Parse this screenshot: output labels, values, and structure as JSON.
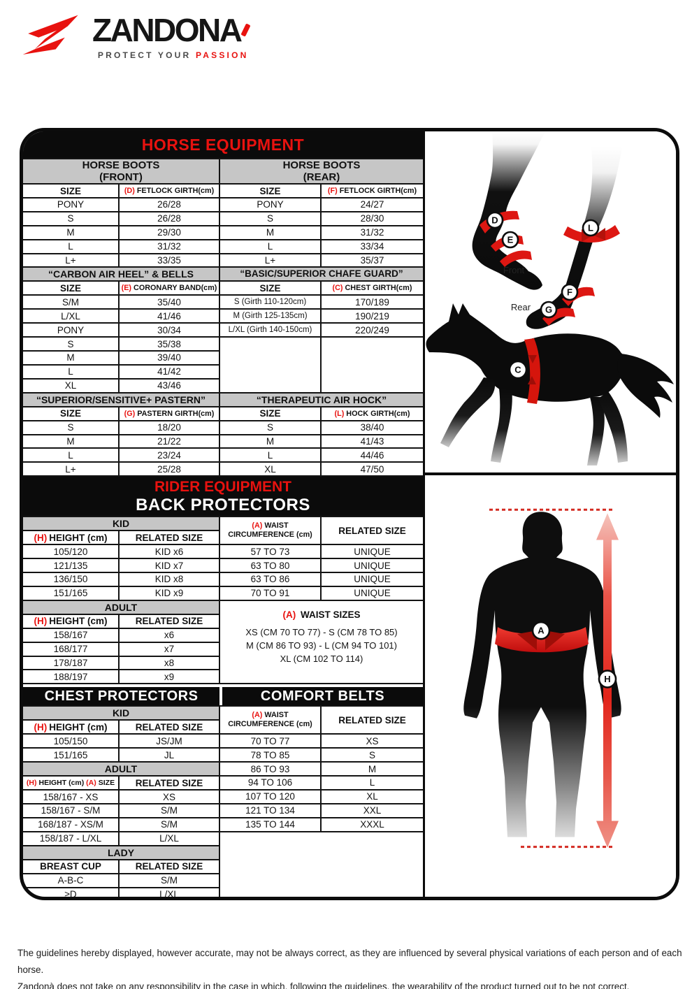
{
  "logo": {
    "brand": "ZANDONA",
    "tagline_dark": "PROTECT  YOUR",
    "tagline_red": "PASSION"
  },
  "horse": {
    "title": "HORSE EQUIPMENT",
    "front_boots": {
      "line1": "HORSE BOOTS",
      "line2": "(FRONT)",
      "size": "SIZE",
      "girth_prefix": "(D)",
      "girth": "FETLOCK GIRTH(cm)",
      "rows": [
        [
          "PONY",
          "26/28"
        ],
        [
          "S",
          "26/28"
        ],
        [
          "M",
          "29/30"
        ],
        [
          "L",
          "31/32"
        ],
        [
          "L+",
          "33/35"
        ]
      ]
    },
    "rear_boots": {
      "line1": "HORSE BOOTS",
      "line2": "(REAR)",
      "size": "SIZE",
      "girth_prefix": "(F)",
      "girth": "FETLOCK GIRTH(cm)",
      "rows": [
        [
          "PONY",
          "24/27"
        ],
        [
          "S",
          "28/30"
        ],
        [
          "M",
          "31/32"
        ],
        [
          "L",
          "33/34"
        ],
        [
          "L+",
          "35/37"
        ]
      ]
    },
    "carbon": {
      "title": "“CARBON AIR HEEL” & BELLS",
      "size": "SIZE",
      "girth_prefix": "(E)",
      "girth": "CORONARY BAND(cm)",
      "rows": [
        [
          "S/M",
          "35/40"
        ],
        [
          "L/XL",
          "41/46"
        ],
        [
          "PONY",
          "30/34"
        ],
        [
          "S",
          "35/38"
        ],
        [
          "M",
          "39/40"
        ],
        [
          "L",
          "41/42"
        ],
        [
          "XL",
          "43/46"
        ]
      ]
    },
    "chafe": {
      "title": "“BASIC/SUPERIOR CHAFE GUARD”",
      "size": "SIZE",
      "girth_prefix": "(C)",
      "girth": "CHEST GIRTH(cm)",
      "rows": [
        [
          "S (Girth 110-120cm)",
          "170/189"
        ],
        [
          "M (Girth 125-135cm)",
          "190/219"
        ],
        [
          "L/XL (Girth 140-150cm)",
          "220/249"
        ]
      ]
    },
    "pastern": {
      "title": "“SUPERIOR/SENSITIVE+ PASTERN”",
      "size": "SIZE",
      "girth_prefix": "(G)",
      "girth": "PASTERN GIRTH(cm)",
      "rows": [
        [
          "S",
          "18/20"
        ],
        [
          "M",
          "21/22"
        ],
        [
          "L",
          "23/24"
        ],
        [
          "L+",
          "25/28"
        ]
      ]
    },
    "hock": {
      "title": "“THERAPEUTIC AIR HOCK”",
      "size": "SIZE",
      "girth_prefix": "(L)",
      "girth": "HOCK GIRTH(cm)",
      "rows": [
        [
          "S",
          "38/40"
        ],
        [
          "M",
          "41/43"
        ],
        [
          "L",
          "44/46"
        ],
        [
          "XL",
          "47/50"
        ]
      ]
    }
  },
  "rider": {
    "title": "RIDER EQUIPMENT",
    "subtitle": "BACK PROTECTORS",
    "bp_kid": {
      "bar": "KID",
      "h_prefix": "(H)",
      "h": "HEIGHT (cm)",
      "related": "RELATED SIZE",
      "rows": [
        [
          "105/120",
          "KID x6"
        ],
        [
          "121/135",
          "KID x7"
        ],
        [
          "136/150",
          "KID x8"
        ],
        [
          "151/165",
          "KID x9"
        ]
      ]
    },
    "bp_adult": {
      "bar": "ADULT",
      "h_prefix": "(H)",
      "h": "HEIGHT (cm)",
      "related": "RELATED SIZE",
      "rows": [
        [
          "158/167",
          "x6"
        ],
        [
          "168/177",
          "x7"
        ],
        [
          "178/187",
          "x8"
        ],
        [
          "188/197",
          "x9"
        ]
      ]
    },
    "bp_waist": {
      "a_prefix": "(A)",
      "line1": "WAIST",
      "line2": "CIRCUMFERENCE (cm)",
      "related": "RELATED SIZE",
      "rows": [
        [
          "57 TO 73",
          "UNIQUE"
        ],
        [
          "63 TO 80",
          "UNIQUE"
        ],
        [
          "63 TO 86",
          "UNIQUE"
        ],
        [
          "70 TO 91",
          "UNIQUE"
        ]
      ]
    },
    "waist_sizes": {
      "a_prefix": "(A)",
      "title": "WAIST SIZES",
      "lines": [
        "XS (CM 70 TO 77) - S (CM 78 TO 85)",
        "M (CM 86 TO 93) - L (CM 94 TO 101)",
        "XL (CM 102 TO 114)"
      ]
    },
    "chest_title": "CHEST PROTECTORS",
    "belts_title": "COMFORT BELTS",
    "cp_kid": {
      "bar": "KID",
      "h_prefix": "(H)",
      "h": "HEIGHT (cm)",
      "related": "RELATED SIZE",
      "rows": [
        [
          "105/150",
          "JS/JM"
        ],
        [
          "151/165",
          "JL"
        ]
      ]
    },
    "cp_adult": {
      "bar": "ADULT",
      "h_prefix": "(H)",
      "h": "HEIGHT (cm)",
      "a_prefix": "(A)",
      "a": "SIZE",
      "related": "RELATED SIZE",
      "rows": [
        [
          "158/167 - XS",
          "XS"
        ],
        [
          "158/167 - S/M",
          "S/M"
        ],
        [
          "168/187 - XS/M",
          "S/M"
        ],
        [
          "158/187 - L/XL",
          "L/XL"
        ]
      ]
    },
    "cp_lady": {
      "bar": "LADY",
      "cup": "BREAST CUP",
      "related": "RELATED SIZE",
      "rows": [
        [
          "A-B-C",
          "S/M"
        ],
        [
          "≥D",
          "L/XL"
        ]
      ]
    },
    "belts": {
      "a_prefix": "(A)",
      "line1": "WAIST",
      "line2": "CIRCUMFERENCE (cm)",
      "related": "RELATED SIZE",
      "rows": [
        [
          "70 TO 77",
          "XS"
        ],
        [
          "78 TO 85",
          "S"
        ],
        [
          "86 TO 93",
          "M"
        ],
        [
          "94 TO 106",
          "L"
        ],
        [
          "107 TO 120",
          "XL"
        ],
        [
          "121 TO 134",
          "XXL"
        ],
        [
          "135 TO 144",
          "XXXL"
        ]
      ]
    }
  },
  "diagram": {
    "front": "Front",
    "rear": "Rear",
    "m": {
      "d": "D",
      "e": "E",
      "f": "F",
      "g": "G",
      "l": "L",
      "c": "C",
      "a": "A",
      "h": "H"
    }
  },
  "disclaimer": {
    "line1": "The guidelines hereby displayed, however accurate, may not be always correct, as they are influenced by several physical variations of each person and of each horse.",
    "line2": "Zandonà does not take on any responsibility in the case in which, following the guidelines, the wearability of the product turned out to be not correct."
  }
}
